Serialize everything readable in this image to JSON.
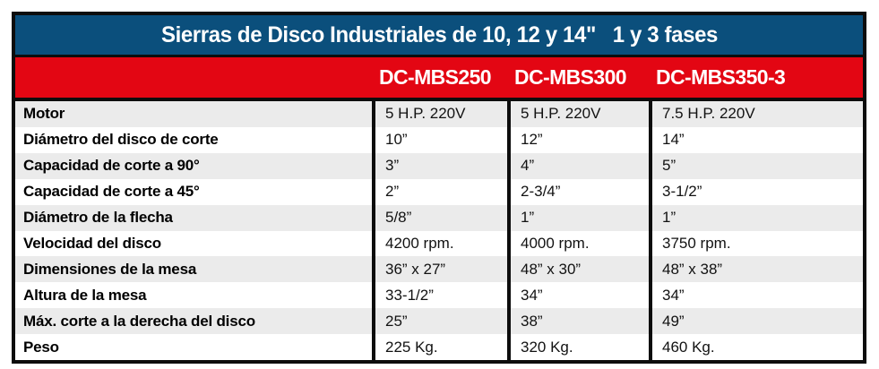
{
  "header": {
    "title": "Sierras de Disco Industriales de 10, 12 y 14\"   1 y 3 fases"
  },
  "models_bar": {
    "models": [
      "DC-MBS250",
      "DC-MBS300",
      "DC-MBS350-3"
    ]
  },
  "table": {
    "rows": [
      {
        "label": "Motor",
        "values": [
          "5 H.P. 220V",
          "5 H.P. 220V",
          "7.5 H.P. 220V"
        ]
      },
      {
        "label": "Diámetro del disco de corte",
        "values": [
          "10”",
          "12”",
          "14”"
        ]
      },
      {
        "label": "Capacidad de corte a 90°",
        "values": [
          "3”",
          "4”",
          "5”"
        ]
      },
      {
        "label": "Capacidad de corte a 45°",
        "values": [
          "2”",
          "2-3/4”",
          "3-1/2”"
        ]
      },
      {
        "label": "Diámetro de la flecha",
        "values": [
          "5/8”",
          "1”",
          "1”"
        ]
      },
      {
        "label": "Velocidad del disco",
        "values": [
          "4200 rpm.",
          "4000 rpm.",
          "3750 rpm."
        ]
      },
      {
        "label": "Dimensiones de la mesa",
        "values": [
          "36” x 27”",
          "48” x 30”",
          "48” x 38”"
        ]
      },
      {
        "label": "Altura de la mesa",
        "values": [
          "33-1/2”",
          "34”",
          "34”"
        ]
      },
      {
        "label": "Máx. corte a la derecha del disco",
        "values": [
          "25”",
          "38”",
          "49”"
        ]
      },
      {
        "label": "Peso",
        "values": [
          "225 Kg.",
          "320 Kg.",
          "460 Kg."
        ]
      }
    ]
  },
  "colors": {
    "header_blue": "#0b4f7c",
    "bar_red": "#e30613",
    "border_black": "#0d0d0d",
    "stripe_gray": "#ebebeb"
  }
}
